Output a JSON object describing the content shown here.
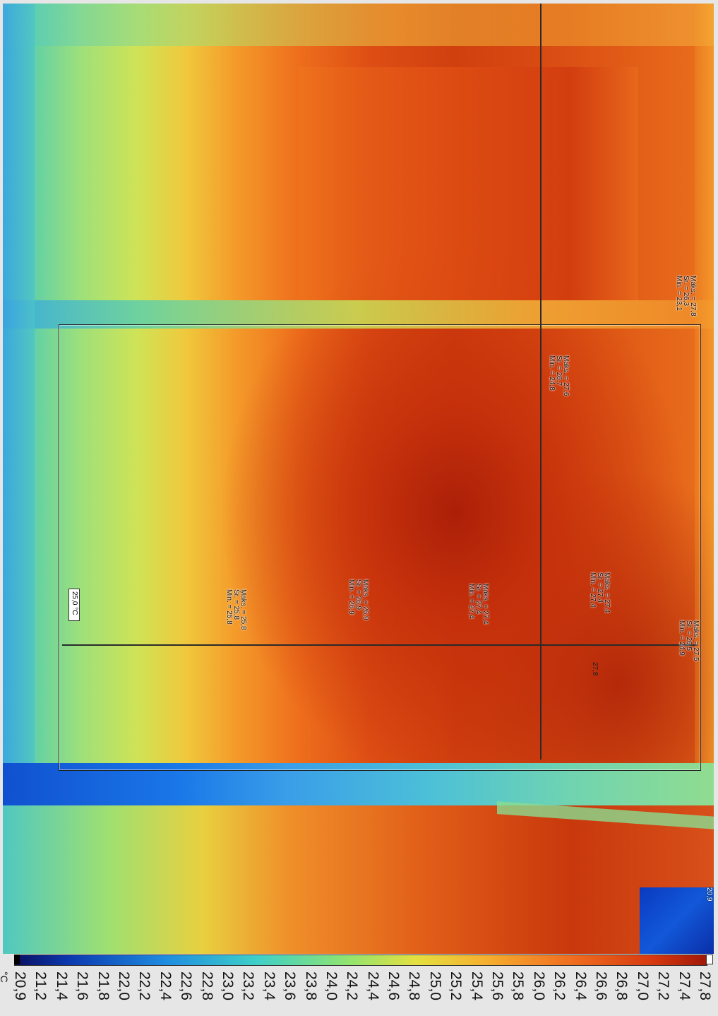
{
  "measurements": [
    {
      "id": "top-right",
      "lines": [
        "Maks. = 27,8",
        "Śr. = 26,3",
        "Min. = 23,1"
      ]
    },
    {
      "id": "upper-mid",
      "lines": [
        "Maks. = 27,6",
        "Śr. = 26,7",
        "Min. = 24,8"
      ]
    },
    {
      "id": "row-1",
      "lines": [
        "Maks. = 25,8",
        "Śr. = 25,8",
        "Min. = 25,8"
      ]
    },
    {
      "id": "row-2",
      "lines": [
        "Maks. = 26,9",
        "Śr. = 26,9",
        "Min. = 26,9"
      ]
    },
    {
      "id": "row-3",
      "lines": [
        "Maks. = 27,4",
        "Śr. = 27,4",
        "Min. = 27,4"
      ]
    },
    {
      "id": "row-4",
      "lines": [
        "Maks. = 27,4",
        "Śr. = 27,4",
        "Min. = 27,4"
      ]
    },
    {
      "id": "right-edge",
      "lines": [
        "Maks. = 27,5",
        "Śr. = 26,5",
        "Min. = 24,9"
      ]
    }
  ],
  "temp_marker": "25,0 °C",
  "spot_label": "27,8",
  "corner_label": "20,9",
  "scale": {
    "unit": "°C",
    "ticks": [
      "20,9",
      "21,2",
      "21,4",
      "21,6",
      "21,8",
      "22,0",
      "22,2",
      "22,4",
      "22,6",
      "22,8",
      "23,0",
      "23,2",
      "23,4",
      "23,6",
      "23,8",
      "24,0",
      "24,2",
      "24,4",
      "24,6",
      "24,8",
      "25,0",
      "25,2",
      "25,4",
      "25,6",
      "25,8",
      "26,0",
      "26,2",
      "26,4",
      "26,6",
      "26,8",
      "27,0",
      "27,2",
      "27,4",
      "27,8"
    ],
    "min": 20.9,
    "max": 27.8
  },
  "colors": {
    "cold": "#0a1060",
    "mid": "#8fe470",
    "hot": "#a01808"
  }
}
